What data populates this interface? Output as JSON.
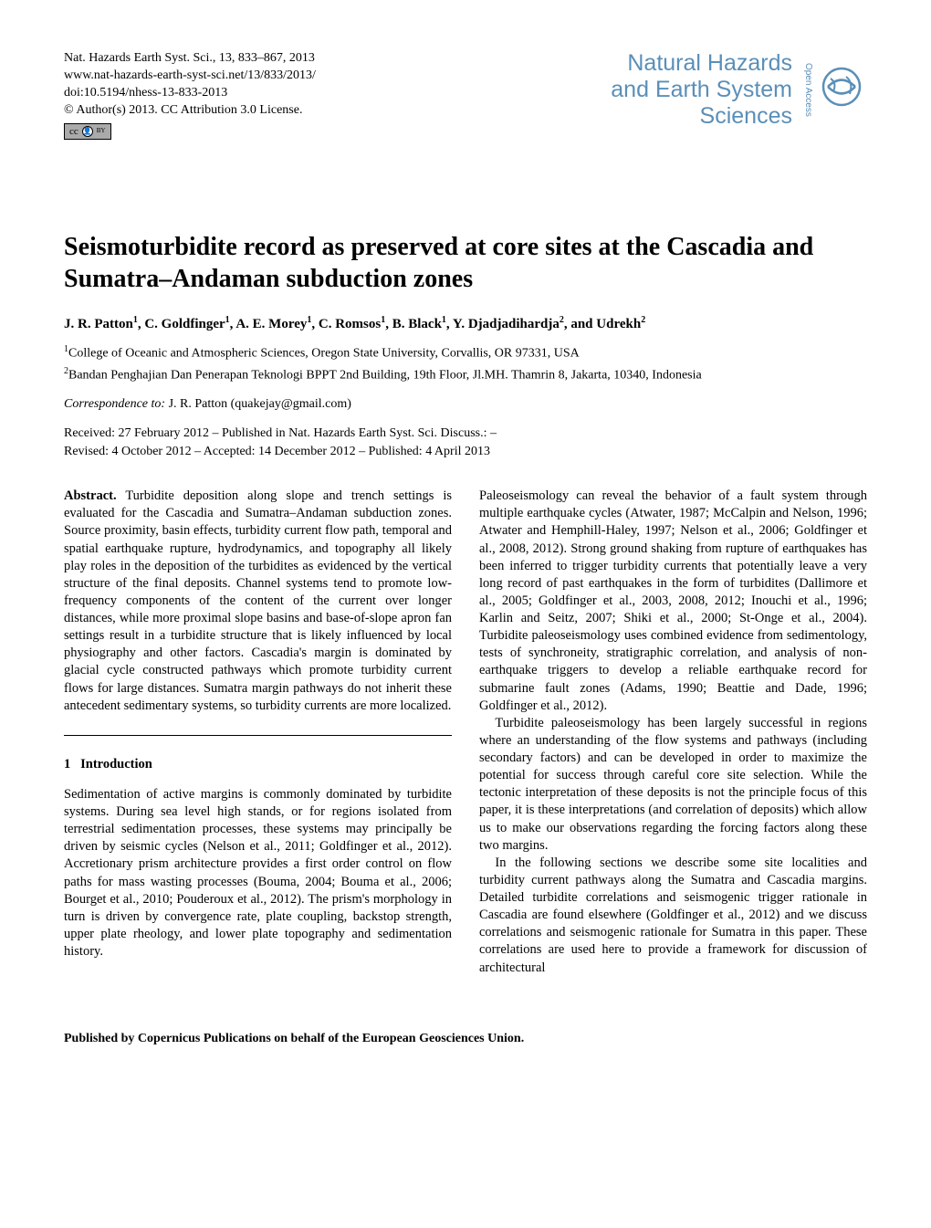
{
  "header": {
    "citation_line1": "Nat. Hazards Earth Syst. Sci., 13, 833–867, 2013",
    "citation_line2": "www.nat-hazards-earth-syst-sci.net/13/833/2013/",
    "citation_line3": "doi:10.5194/nhess-13-833-2013",
    "citation_line4": "© Author(s) 2013. CC Attribution 3.0 License.",
    "journal_line1": "Natural Hazards",
    "journal_line2": "and Earth System",
    "journal_line3": "Sciences",
    "open_access": "Open Access",
    "cc_badge_cc": "cc",
    "cc_badge_by": "BY"
  },
  "title": "Seismoturbidite record as preserved at core sites at the Cascadia and Sumatra–Andaman subduction zones",
  "authors_html": "J. R. Patton<sup>1</sup>, C. Goldfinger<sup>1</sup>, A. E. Morey<sup>1</sup>, C. Romsos<sup>1</sup>, B. Black<sup>1</sup>, Y. Djadjadihardja<sup>2</sup>, and Udrekh<sup>2</sup>",
  "affiliations": [
    "<sup>1</sup>College of Oceanic and Atmospheric Sciences, Oregon State University, Corvallis, OR 97331, USA",
    "<sup>2</sup>Bandan Penghajian Dan Penerapan Teknologi BPPT 2nd Building, 19th Floor, Jl.MH. Thamrin 8, Jakarta, 10340, Indonesia"
  ],
  "correspondence": {
    "label": "Correspondence to:",
    "person": "J. R. Patton (quakejay@gmail.com)"
  },
  "dates": {
    "line1": "Received: 27 February 2012 – Published in Nat. Hazards Earth Syst. Sci. Discuss.: –",
    "line2": "Revised: 4 October 2012 – Accepted: 14 December 2012 – Published: 4 April 2013"
  },
  "abstract": {
    "label": "Abstract.",
    "text": "Turbidite deposition along slope and trench settings is evaluated for the Cascadia and Sumatra–Andaman subduction zones. Source proximity, basin effects, turbidity current flow path, temporal and spatial earthquake rupture, hydrodynamics, and topography all likely play roles in the deposition of the turbidites as evidenced by the vertical structure of the final deposits. Channel systems tend to promote low-frequency components of the content of the current over longer distances, while more proximal slope basins and base-of-slope apron fan settings result in a turbidite structure that is likely influenced by local physiography and other factors. Cascadia's margin is dominated by glacial cycle constructed pathways which promote turbidity current flows for large distances. Sumatra margin pathways do not inherit these antecedent sedimentary systems, so turbidity currents are more localized."
  },
  "section1": {
    "number": "1",
    "heading": "Introduction",
    "para1": "Sedimentation of active margins is commonly dominated by turbidite systems. During sea level high stands, or for regions isolated from terrestrial sedimentation processes, these systems may principally be driven by seismic cycles (Nelson et al., 2011; Goldfinger et al., 2012). Accretionary prism architecture provides a first order control on flow paths for mass wasting processes (Bouma, 2004; Bouma et al., 2006; Bourget et al., 2010; Pouderoux et al., 2012). The prism's morphology in turn is driven by convergence rate, plate coupling, backstop strength, upper plate rheology, and lower plate topography and sedimentation history."
  },
  "right_col": {
    "para1": "Paleoseismology can reveal the behavior of a fault system through multiple earthquake cycles (Atwater, 1987; McCalpin and Nelson, 1996; Atwater and Hemphill-Haley, 1997; Nelson et al., 2006; Goldfinger et al., 2008, 2012). Strong ground shaking from rupture of earthquakes has been inferred to trigger turbidity currents that potentially leave a very long record of past earthquakes in the form of turbidites (Dallimore et al., 2005; Goldfinger et al., 2003, 2008, 2012; Inouchi et al., 1996; Karlin and Seitz, 2007; Shiki et al., 2000; St-Onge et al., 2004). Turbidite paleoseismology uses combined evidence from sedimentology, tests of synchroneity, stratigraphic correlation, and analysis of non-earthquake triggers to develop a reliable earthquake record for submarine fault zones (Adams, 1990; Beattie and Dade, 1996; Goldfinger et al., 2012).",
    "para2": "Turbidite paleoseismology has been largely successful in regions where an understanding of the flow systems and pathways (including secondary factors) and can be developed in order to maximize the potential for success through careful core site selection. While the tectonic interpretation of these deposits is not the principle focus of this paper, it is these interpretations (and correlation of deposits) which allow us to make our observations regarding the forcing factors along these two margins.",
    "para3": "In the following sections we describe some site localities and turbidity current pathways along the Sumatra and Cascadia margins. Detailed turbidite correlations and seismogenic trigger rationale in Cascadia are found elsewhere (Goldfinger et al., 2012) and we discuss correlations and seismogenic rationale for Sumatra in this paper. These correlations are used here to provide a framework for discussion of architectural"
  },
  "footer": "Published by Copernicus Publications on behalf of the European Geosciences Union.",
  "colors": {
    "journal_logo": "#5a8fb8",
    "text": "#000000",
    "background": "#ffffff"
  },
  "typography": {
    "body_font": "Times New Roman",
    "title_fontsize_pt": 21,
    "body_fontsize_pt": 11,
    "logo_font": "Arial"
  }
}
